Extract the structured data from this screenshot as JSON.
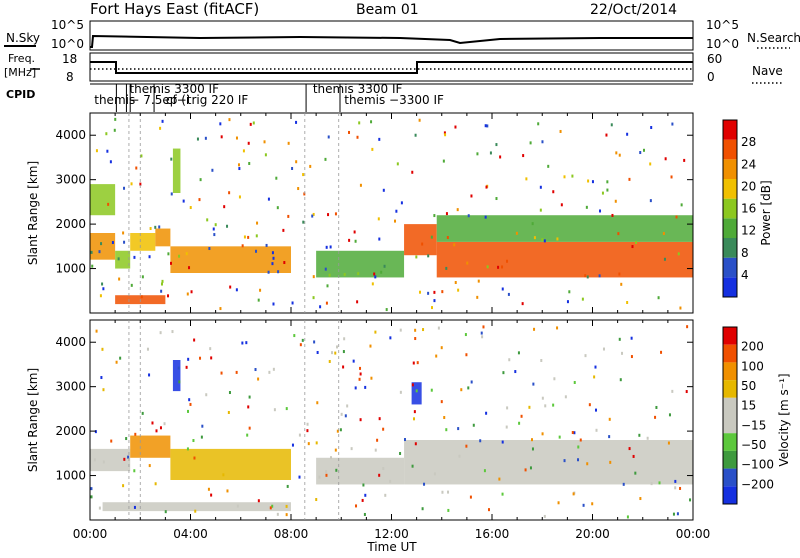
{
  "header": {
    "title": "Fort Hays East (fitACF)",
    "beam": "Beam 01",
    "date": "22/Oct/2014"
  },
  "noise_panel": {
    "left_label": "N.Sky",
    "right_label": "N.Search",
    "left_ticks": [
      "10^5",
      "10^0"
    ],
    "right_ticks": [
      "10^5",
      "10^0"
    ]
  },
  "freq_panel": {
    "left_label_1": "Freq.",
    "left_label_2": "[MHz]",
    "right_label": "Nave",
    "left_ticks": [
      "18",
      "8"
    ],
    "right_ticks": [
      "60",
      "0"
    ]
  },
  "cpid_panel": {
    "label": "CPID",
    "segments": [
      {
        "text": "themis",
        "hour": 0.05,
        "row": 1
      },
      {
        "text": "themis  3300 IF",
        "hour": 1.45,
        "row": 0
      },
      {
        "text": "− 7.5ep (i",
        "hour": 1.45,
        "row": 1
      },
      {
        "text": "cf−trig 220 IF",
        "hour": 2.9,
        "row": 1
      },
      {
        "text": "themis 3300 IF",
        "hour": 8.75,
        "row": 0
      },
      {
        "text": "themis −3300 IF",
        "hour": 10.0,
        "row": 1
      }
    ],
    "boundaries": [
      1.05,
      1.45,
      1.6,
      2.55,
      8.6,
      9.95
    ]
  },
  "time_axis": {
    "label": "Time UT",
    "ticks": [
      "00:00",
      "04:00",
      "08:00",
      "12:00",
      "16:00",
      "20:00",
      "00:00"
    ]
  },
  "colors": {
    "power": [
      "#1530e0",
      "#2a50c8",
      "#3a8a5a",
      "#4faa38",
      "#8cc820",
      "#f0c000",
      "#f09000",
      "#f05000",
      "#e00000"
    ],
    "velocity": [
      "#e00000",
      "#f05000",
      "#f09000",
      "#e6b800",
      "#c9c9c0",
      "#c9c9c0",
      "#5cc83c",
      "#3e9a3e",
      "#2a50c8",
      "#1530e0"
    ]
  },
  "chart_data": [
    {
      "type": "heatmap",
      "title": "",
      "xlabel": "",
      "ylabel": "Slant Range [km]",
      "xlim": [
        0,
        24
      ],
      "ylim": [
        0,
        4500
      ],
      "yticks": [
        "1000",
        "2000",
        "3000",
        "4000"
      ],
      "colorbar": {
        "label": "Power [dB]",
        "ticks": [
          "4",
          "8",
          "12",
          "16",
          "20",
          "24",
          "28"
        ],
        "range": [
          0,
          30
        ]
      },
      "regions": [
        {
          "hours": [
            0,
            1.0
          ],
          "range_km": [
            1200,
            1800
          ],
          "value": 20
        },
        {
          "hours": [
            0,
            1.0
          ],
          "range_km": [
            2200,
            2900
          ],
          "value": 16
        },
        {
          "hours": [
            1.0,
            1.6
          ],
          "range_km": [
            1000,
            1400
          ],
          "value": 14
        },
        {
          "hours": [
            1.6,
            2.6
          ],
          "range_km": [
            1400,
            1800
          ],
          "value": 18
        },
        {
          "hours": [
            2.6,
            3.2
          ],
          "range_km": [
            1500,
            1900
          ],
          "value": 22
        },
        {
          "hours": [
            3.2,
            8.0
          ],
          "range_km": [
            900,
            1500
          ],
          "value": 22
        },
        {
          "hours": [
            3.3,
            3.6
          ],
          "range_km": [
            2700,
            3700
          ],
          "value": 14
        },
        {
          "hours": [
            1.0,
            3.0
          ],
          "range_km": [
            200,
            400
          ],
          "value": 24
        },
        {
          "hours": [
            9.0,
            12.5
          ],
          "range_km": [
            800,
            1400
          ],
          "value": 12
        },
        {
          "hours": [
            12.5,
            13.8
          ],
          "range_km": [
            1300,
            2000
          ],
          "value": 24
        },
        {
          "hours": [
            13.8,
            24.0
          ],
          "range_km": [
            800,
            1600
          ],
          "value": 24
        },
        {
          "hours": [
            13.8,
            24.0
          ],
          "range_km": [
            1600,
            2200
          ],
          "value": 10
        }
      ]
    },
    {
      "type": "heatmap",
      "title": "",
      "xlabel": "Time UT",
      "ylabel": "Slant Range [km]",
      "xlim": [
        0,
        24
      ],
      "ylim": [
        0,
        4500
      ],
      "yticks": [
        "1000",
        "2000",
        "3000",
        "4000"
      ],
      "colorbar": {
        "label": "Velocity [m s⁻¹]",
        "ticks": [
          "200",
          "100",
          "50",
          "15",
          "−15",
          "−50",
          "−100",
          "−200"
        ],
        "range": [
          -250,
          250
        ]
      },
      "regions": [
        {
          "hours": [
            0,
            1.6
          ],
          "range_km": [
            1100,
            1600
          ],
          "value": 0
        },
        {
          "hours": [
            1.6,
            3.2
          ],
          "range_km": [
            1400,
            1900
          ],
          "value": 150
        },
        {
          "hours": [
            3.2,
            8.0
          ],
          "range_km": [
            900,
            1600
          ],
          "value": 60
        },
        {
          "hours": [
            3.3,
            3.6
          ],
          "range_km": [
            2900,
            3600
          ],
          "value": -220
        },
        {
          "hours": [
            9.0,
            12.5
          ],
          "range_km": [
            800,
            1400
          ],
          "value": 0
        },
        {
          "hours": [
            12.8,
            13.2
          ],
          "range_km": [
            2600,
            3100
          ],
          "value": -220
        },
        {
          "hours": [
            12.5,
            24.0
          ],
          "range_km": [
            800,
            1800
          ],
          "value": 0
        },
        {
          "hours": [
            0.5,
            8.0
          ],
          "range_km": [
            200,
            400
          ],
          "value": 0
        }
      ]
    }
  ]
}
